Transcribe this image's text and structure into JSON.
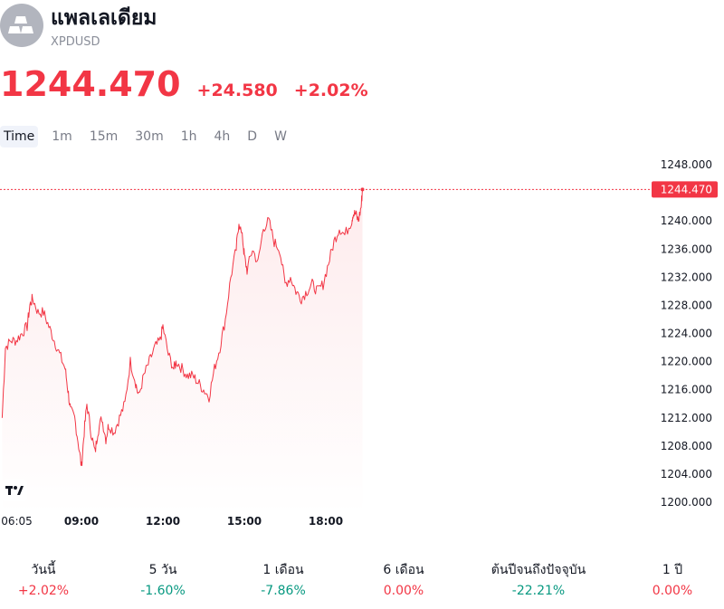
{
  "header": {
    "title": "แพลเลเดียม",
    "ticker": "XPDUSD",
    "logo_icon": "gold-bars-icon"
  },
  "quote": {
    "price": "1244.470",
    "change": "+24.580",
    "change_pct": "+2.02%"
  },
  "intervals": [
    {
      "label": "Time",
      "active": true
    },
    {
      "label": "1m"
    },
    {
      "label": "15m"
    },
    {
      "label": "30m"
    },
    {
      "label": "1h"
    },
    {
      "label": "4h"
    },
    {
      "label": "D"
    },
    {
      "label": "W"
    }
  ],
  "performance": [
    {
      "label": "วันนี้",
      "value": "+2.02%",
      "trend": "neg"
    },
    {
      "label": "5 วัน",
      "value": "-1.60%",
      "trend": "pos"
    },
    {
      "label": "1 เดือน",
      "value": "-7.86%",
      "trend": "pos"
    },
    {
      "label": "6 เดือน",
      "value": "0.00%",
      "trend": "neg"
    },
    {
      "label": "ต้นปีจนถึงปัจจุบัน",
      "value": "-22.21%",
      "trend": "pos"
    },
    {
      "label": "1 ปี",
      "value": "0.00%",
      "trend": "neg"
    }
  ],
  "colors": {
    "line": "#f23645",
    "area_fill": "#f23645",
    "grid_label": "#131722",
    "positive": "#089981",
    "negative": "#f23645"
  },
  "chart_data": {
    "type": "area",
    "ylim": [
      1198,
      1250
    ],
    "y_ticks": [
      1248,
      1244,
      1240,
      1236,
      1232,
      1228,
      1224,
      1220,
      1216,
      1212,
      1208,
      1204,
      1200
    ],
    "y_tick_labels": [
      "1248.000",
      "",
      "1240.000",
      "1236.000",
      "1232.000",
      "1228.000",
      "1224.000",
      "1220.000",
      "1216.000",
      "1212.000",
      "1208.000",
      "1204.000",
      "1200.000"
    ],
    "x_range_hours": [
      6.0,
      19.4
    ],
    "x_ticks": [
      {
        "hour": 6.0833,
        "label": "06:05",
        "bold": false
      },
      {
        "hour": 9.0,
        "label": "09:00",
        "bold": true
      },
      {
        "hour": 12.0,
        "label": "12:00",
        "bold": true
      },
      {
        "hour": 15.0,
        "label": "15:00",
        "bold": true
      },
      {
        "hour": 18.0,
        "label": "18:00",
        "bold": true
      }
    ],
    "last_value": 1244.47,
    "last_value_label": "1244.470",
    "series": [
      {
        "x": [
          6.08,
          6.2,
          6.4,
          6.6,
          6.8,
          7.0,
          7.1,
          7.2,
          7.4,
          7.6,
          7.8,
          8.0,
          8.2,
          8.4,
          8.5,
          8.6,
          8.75,
          8.9,
          9.0,
          9.1,
          9.2,
          9.35,
          9.5,
          9.6,
          9.75,
          9.9,
          10.0,
          10.2,
          10.4,
          10.6,
          10.8,
          11.0,
          11.1,
          11.3,
          11.5,
          11.7,
          11.9,
          12.0,
          12.2,
          12.4,
          12.5,
          12.7,
          12.9,
          13.1,
          13.3,
          13.5,
          13.7,
          13.9,
          14.1,
          14.3,
          14.5,
          14.7,
          14.8,
          14.95,
          15.0,
          15.1,
          15.3,
          15.5,
          15.7,
          15.9,
          16.1,
          16.3,
          16.5,
          16.7,
          16.9,
          17.1,
          17.3,
          17.5,
          17.7,
          17.9,
          18.1,
          18.3,
          18.5,
          18.7,
          18.95,
          19.0,
          19.1,
          19.2,
          19.3,
          19.35
        ],
        "y": [
          1212,
          1222,
          1223,
          1223,
          1224,
          1225,
          1228,
          1229,
          1227,
          1227,
          1225,
          1223,
          1221,
          1219,
          1216,
          1213,
          1212,
          1208,
          1205,
          1210,
          1214,
          1210,
          1207,
          1210,
          1212,
          1209,
          1211,
          1210,
          1212,
          1214,
          1220,
          1217,
          1215,
          1218,
          1220,
          1222,
          1223,
          1225,
          1221,
          1219,
          1220,
          1219,
          1218,
          1218,
          1217,
          1216,
          1215,
          1219,
          1222,
          1226,
          1232,
          1236,
          1240,
          1237,
          1235,
          1233,
          1236,
          1234,
          1239,
          1240,
          1237,
          1236,
          1231,
          1232,
          1230,
          1229,
          1230,
          1231,
          1230,
          1231,
          1234,
          1237,
          1239,
          1238,
          1240,
          1241,
          1241,
          1240,
          1242,
          1244.47
        ]
      }
    ]
  }
}
